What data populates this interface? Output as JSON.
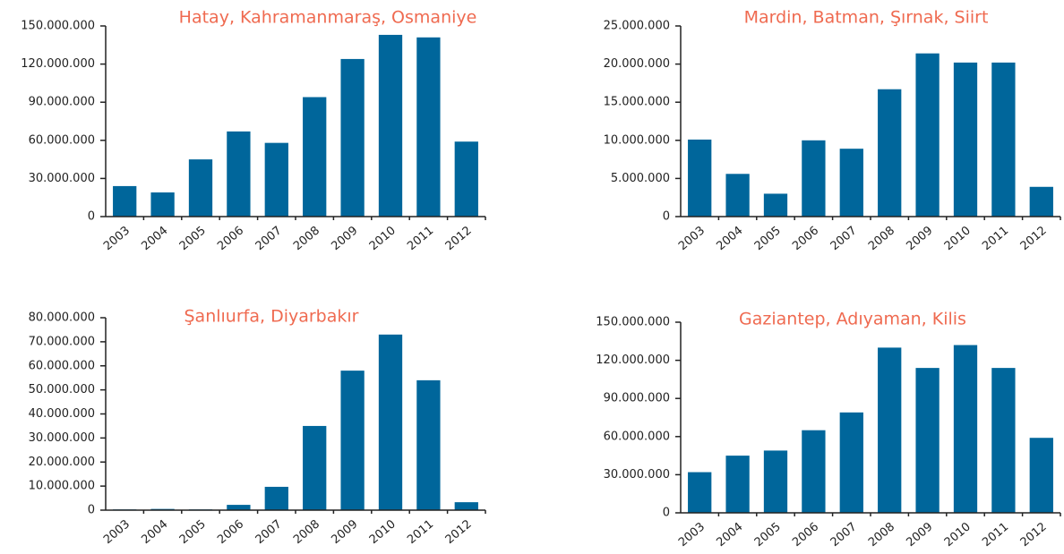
{
  "chart_data": [
    {
      "type": "bar",
      "title": "Hatay, Kahramanmaraş, Osmaniye",
      "categories": [
        "2003",
        "2004",
        "2005",
        "2006",
        "2007",
        "2008",
        "2009",
        "2010",
        "2011",
        "2012"
      ],
      "values": [
        24000000,
        19000000,
        45000000,
        67000000,
        58000000,
        94000000,
        124000000,
        143000000,
        141000000,
        59000000
      ],
      "color": "#00669b",
      "ylim": [
        0,
        150000000
      ],
      "yticks": [
        0,
        {
          "value": 30000000,
          "label": "30.000.000"
        },
        {
          "value": 60000000,
          "label": "60.000.000"
        },
        {
          "value": 90000000,
          "label": "90.000.000"
        },
        {
          "value": 120000000,
          "label": "120.000.000"
        },
        {
          "value": 150000000,
          "label": "150.000.000"
        }
      ]
    },
    {
      "type": "bar",
      "title": "Mardin, Batman, Şırnak, Siirt",
      "categories": [
        "2003",
        "2004",
        "2005",
        "2006",
        "2007",
        "2008",
        "2009",
        "2010",
        "2011",
        "2012"
      ],
      "values": [
        10100000,
        5600000,
        3000000,
        10000000,
        8900000,
        16700000,
        21400000,
        20200000,
        20200000,
        3900000
      ],
      "color": "#00669b",
      "ylim": [
        0,
        25000000
      ],
      "yticks": [
        0,
        {
          "value": 5000000,
          "label": "5.000.000"
        },
        {
          "value": 10000000,
          "label": "10.000.000"
        },
        {
          "value": 15000000,
          "label": "15.000.000"
        },
        {
          "value": 20000000,
          "label": "20.000.000"
        },
        {
          "value": 25000000,
          "label": "25.000.000"
        }
      ]
    },
    {
      "type": "bar",
      "title": "Şanlıurfa, Diyarbakır",
      "categories": [
        "2003",
        "2004",
        "2005",
        "2006",
        "2007",
        "2008",
        "2009",
        "2010",
        "2011",
        "2012"
      ],
      "values": [
        300000,
        500000,
        300000,
        2200000,
        9700000,
        35000000,
        58000000,
        73000000,
        54000000,
        3300000
      ],
      "color": "#00669b",
      "ylim": [
        0,
        80000000
      ],
      "yticks": [
        0,
        {
          "value": 10000000,
          "label": "10.000.000"
        },
        {
          "value": 20000000,
          "label": "20.000.000"
        },
        {
          "value": 30000000,
          "label": "30.000.000"
        },
        {
          "value": 40000000,
          "label": "40.000.000"
        },
        {
          "value": 50000000,
          "label": "50.000.000"
        },
        {
          "value": 60000000,
          "label": "60.000.000"
        },
        {
          "value": 70000000,
          "label": "70.000.000"
        },
        {
          "value": 80000000,
          "label": "80.000.000"
        }
      ]
    },
    {
      "type": "bar",
      "title": "Gaziantep, Adıyaman, Kilis",
      "categories": [
        "2003",
        "2004",
        "2005",
        "2006",
        "2007",
        "2008",
        "2009",
        "2010",
        "2011",
        "2012"
      ],
      "values": [
        32000000,
        45000000,
        49000000,
        65000000,
        79000000,
        130000000,
        114000000,
        132000000,
        114000000,
        59000000
      ],
      "color": "#00669b",
      "ylim": [
        0,
        150000000
      ],
      "yticks": [
        0,
        {
          "value": 30000000,
          "label": "30.000.000"
        },
        {
          "value": 60000000,
          "label": "60.000.000"
        },
        {
          "value": 90000000,
          "label": "90.000.000"
        },
        {
          "value": 120000000,
          "label": "120.000.000"
        },
        {
          "value": 150000000,
          "label": "150.000.000"
        }
      ]
    }
  ]
}
